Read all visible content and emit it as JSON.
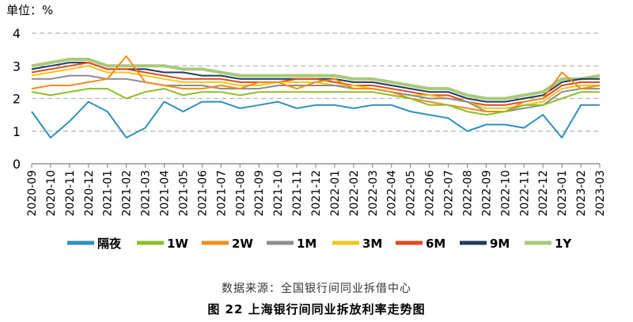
{
  "chart_data": {
    "type": "line",
    "unit_label": "单位：%",
    "ylim": [
      0,
      4
    ],
    "y_ticks": [
      "0",
      "1",
      "2",
      "3",
      "4"
    ],
    "grid": true,
    "legend_position": "bottom",
    "x_tick_labels": [
      "2020-09",
      "2020-10",
      "2020-11",
      "2020-12",
      "2021-01",
      "2021-02",
      "2021-03",
      "2021-04",
      "2021-05",
      "2021-06",
      "2021-07",
      "2021-08",
      "2021-09",
      "2021-10",
      "2021-11",
      "2021-12",
      "2022-01",
      "2022-02",
      "2022-03",
      "2022-04",
      "2022-05",
      "2022-06",
      "2022-07",
      "2022-08",
      "2022-09",
      "2022-10",
      "2022-11",
      "2022-12",
      "2023-01",
      "2023-02",
      "2023-03"
    ],
    "series": [
      {
        "name": "隔夜",
        "color": "#2e8fbf",
        "values": [
          1.6,
          0.8,
          1.3,
          1.9,
          1.6,
          0.8,
          1.1,
          1.9,
          1.6,
          1.9,
          1.9,
          1.7,
          1.8,
          1.9,
          1.7,
          1.8,
          1.8,
          1.7,
          1.8,
          1.8,
          1.6,
          1.5,
          1.4,
          1.0,
          1.2,
          1.2,
          1.1,
          1.5,
          0.8,
          1.8,
          1.8
        ]
      },
      {
        "name": "1W",
        "color": "#8cbf26",
        "values": [
          2.2,
          2.1,
          2.2,
          2.3,
          2.3,
          2.0,
          2.2,
          2.3,
          2.1,
          2.2,
          2.2,
          2.1,
          2.2,
          2.2,
          2.2,
          2.2,
          2.2,
          2.2,
          2.2,
          2.1,
          2.0,
          1.8,
          1.8,
          1.6,
          1.5,
          1.6,
          1.8,
          1.8,
          2.0,
          2.2,
          2.2
        ]
      },
      {
        "name": "2W",
        "color": "#f28c1c",
        "values": [
          2.3,
          2.4,
          2.4,
          2.5,
          2.6,
          3.3,
          2.5,
          2.4,
          2.3,
          2.3,
          2.4,
          2.3,
          2.5,
          2.5,
          2.3,
          2.5,
          2.6,
          2.3,
          2.3,
          2.2,
          2.0,
          1.9,
          1.8,
          1.7,
          1.6,
          1.6,
          1.9,
          2.0,
          2.8,
          2.3,
          2.4
        ]
      },
      {
        "name": "1M",
        "color": "#8c8c8c",
        "values": [
          2.6,
          2.6,
          2.7,
          2.7,
          2.6,
          2.6,
          2.5,
          2.4,
          2.4,
          2.4,
          2.3,
          2.3,
          2.3,
          2.4,
          2.4,
          2.4,
          2.4,
          2.3,
          2.3,
          2.2,
          2.1,
          2.0,
          2.0,
          1.9,
          1.6,
          1.6,
          1.7,
          1.8,
          2.2,
          2.3,
          2.3
        ]
      },
      {
        "name": "3M",
        "color": "#f5c518",
        "values": [
          2.7,
          2.8,
          2.9,
          3.0,
          2.8,
          2.8,
          2.7,
          2.6,
          2.5,
          2.5,
          2.5,
          2.4,
          2.4,
          2.5,
          2.5,
          2.5,
          2.4,
          2.4,
          2.3,
          2.2,
          2.1,
          2.1,
          2.0,
          1.9,
          1.7,
          1.7,
          1.8,
          1.9,
          2.3,
          2.4,
          2.4
        ]
      },
      {
        "name": "6M",
        "color": "#e24a1a",
        "values": [
          2.8,
          2.9,
          3.0,
          3.1,
          2.9,
          2.9,
          2.8,
          2.7,
          2.6,
          2.6,
          2.6,
          2.5,
          2.5,
          2.5,
          2.6,
          2.6,
          2.5,
          2.4,
          2.4,
          2.3,
          2.2,
          2.1,
          2.1,
          1.9,
          1.8,
          1.8,
          1.9,
          2.0,
          2.4,
          2.5,
          2.5
        ]
      },
      {
        "name": "9M",
        "color": "#1f3b5c",
        "values": [
          2.9,
          3.0,
          3.1,
          3.1,
          2.9,
          2.9,
          2.9,
          2.8,
          2.8,
          2.7,
          2.7,
          2.6,
          2.6,
          2.6,
          2.6,
          2.6,
          2.6,
          2.5,
          2.5,
          2.4,
          2.3,
          2.2,
          2.2,
          2.0,
          1.9,
          1.9,
          2.0,
          2.1,
          2.5,
          2.6,
          2.6
        ]
      },
      {
        "name": "1Y",
        "color": "#a9c97a",
        "values": [
          3.0,
          3.1,
          3.2,
          3.2,
          3.0,
          3.0,
          3.0,
          3.0,
          2.9,
          2.9,
          2.8,
          2.7,
          2.7,
          2.7,
          2.7,
          2.7,
          2.7,
          2.6,
          2.6,
          2.5,
          2.4,
          2.3,
          2.3,
          2.1,
          2.0,
          2.0,
          2.1,
          2.2,
          2.6,
          2.6,
          2.7
        ]
      }
    ]
  },
  "source_text": "数据来源：全国银行间同业拆借中心",
  "caption_text": "图 22   上海银行间同业拆放利率走势图"
}
